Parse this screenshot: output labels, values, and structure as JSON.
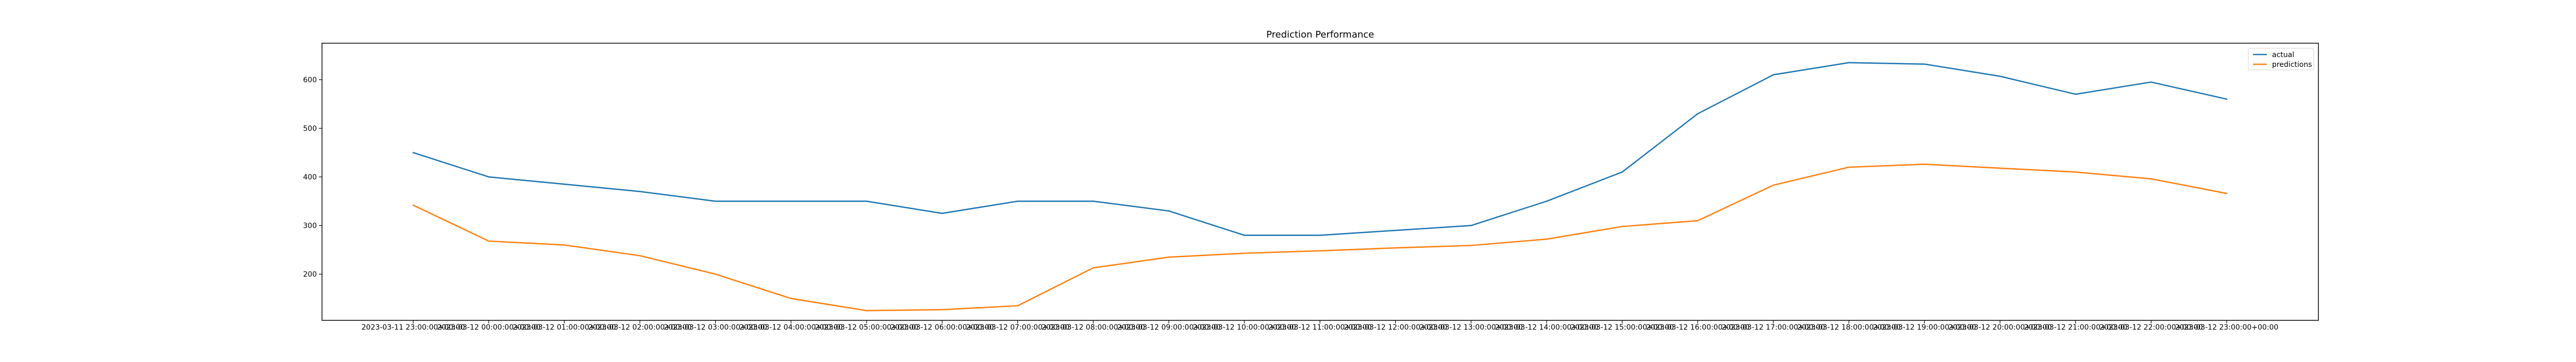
{
  "chart_data": {
    "type": "line",
    "title": "Prediction Performance",
    "xlabel": "",
    "ylabel": "",
    "x": [
      "2023-03-11 23:00:00+00:00",
      "2023-03-12 00:00:00+00:00",
      "2023-03-12 01:00:00+00:00",
      "2023-03-12 02:00:00+00:00",
      "2023-03-12 03:00:00+00:00",
      "2023-03-12 04:00:00+00:00",
      "2023-03-12 05:00:00+00:00",
      "2023-03-12 06:00:00+00:00",
      "2023-03-12 07:00:00+00:00",
      "2023-03-12 08:00:00+00:00",
      "2023-03-12 09:00:00+00:00",
      "2023-03-12 10:00:00+00:00",
      "2023-03-12 11:00:00+00:00",
      "2023-03-12 12:00:00+00:00",
      "2023-03-12 13:00:00+00:00",
      "2023-03-12 14:00:00+00:00",
      "2023-03-12 15:00:00+00:00",
      "2023-03-12 16:00:00+00:00",
      "2023-03-12 17:00:00+00:00",
      "2023-03-12 18:00:00+00:00",
      "2023-03-12 19:00:00+00:00",
      "2023-03-12 20:00:00+00:00",
      "2023-03-12 21:00:00+00:00",
      "2023-03-12 22:00:00+00:00",
      "2023-03-12 23:00:00+00:00"
    ],
    "series": [
      {
        "name": "actual",
        "color": "#1f77b4",
        "values": [
          450,
          400,
          385,
          370,
          350,
          350,
          350,
          325,
          350,
          350,
          330,
          280,
          280,
          290,
          300,
          350,
          410,
          530,
          610,
          635,
          632,
          607,
          570,
          595,
          560
        ]
      },
      {
        "name": "predictions",
        "color": "#ff7f0e",
        "values": [
          342,
          268,
          260,
          238,
          200,
          150,
          125,
          127,
          135,
          213,
          235,
          243,
          248,
          254,
          259,
          272,
          298,
          310,
          383,
          420,
          426,
          418,
          410,
          396,
          366
        ]
      }
    ],
    "ylim": [
      105,
      675
    ],
    "yticks": [
      200,
      300,
      400,
      500,
      600
    ],
    "grid": false,
    "legend_position": "top-right"
  }
}
